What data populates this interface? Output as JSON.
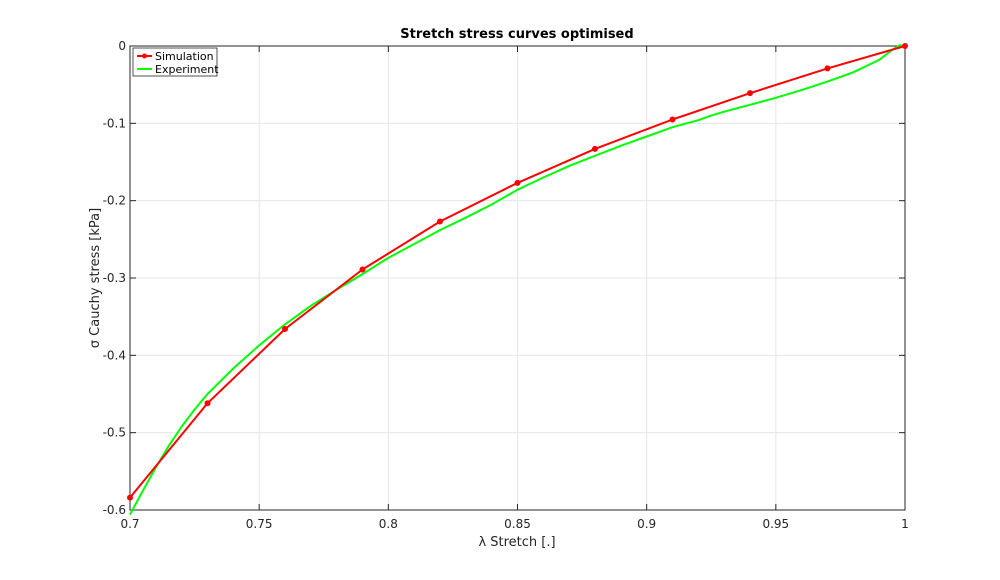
{
  "chart_data": {
    "type": "line",
    "title": "Stretch stress curves optimised",
    "xlabel": "λ Stretch [.]",
    "ylabel": "σ Cauchy stress [kPa]",
    "xlim": [
      0.7,
      1.0
    ],
    "ylim": [
      -0.6,
      0
    ],
    "xticks": [
      0.7,
      0.75,
      0.8,
      0.85,
      0.9,
      0.95,
      1
    ],
    "xtick_labels": [
      "0.7",
      "0.75",
      "0.8",
      "0.85",
      "0.9",
      "0.95",
      "1"
    ],
    "yticks": [
      0,
      -0.1,
      -0.2,
      -0.3,
      -0.4,
      -0.5,
      -0.6
    ],
    "ytick_labels": [
      "0",
      "-0.1",
      "-0.2",
      "-0.3",
      "-0.4",
      "-0.5",
      "-0.6"
    ],
    "grid": true,
    "legend_position": "top-left",
    "series": [
      {
        "name": "Simulation",
        "color": "#ff0000",
        "marker": "dot",
        "x": [
          0.7,
          0.73,
          0.76,
          0.79,
          0.82,
          0.85,
          0.88,
          0.91,
          0.94,
          0.97,
          1.0
        ],
        "y": [
          -0.584,
          -0.462,
          -0.366,
          -0.289,
          -0.227,
          -0.177,
          -0.133,
          -0.095,
          -0.061,
          -0.029,
          0.0
        ]
      },
      {
        "name": "Experiment",
        "color": "#00ff00",
        "marker": "none",
        "x": [
          0.7,
          0.705,
          0.71,
          0.715,
          0.72,
          0.725,
          0.73,
          0.74,
          0.75,
          0.76,
          0.77,
          0.78,
          0.79,
          0.8,
          0.81,
          0.82,
          0.83,
          0.84,
          0.85,
          0.86,
          0.87,
          0.88,
          0.89,
          0.9,
          0.91,
          0.92,
          0.925,
          0.93,
          0.94,
          0.95,
          0.96,
          0.97,
          0.98,
          0.99,
          0.995,
          0.998,
          1.0
        ],
        "y": [
          -0.606,
          -0.575,
          -0.545,
          -0.517,
          -0.492,
          -0.47,
          -0.45,
          -0.417,
          -0.387,
          -0.36,
          -0.336,
          -0.315,
          -0.295,
          -0.274,
          -0.256,
          -0.238,
          -0.222,
          -0.205,
          -0.186,
          -0.17,
          -0.155,
          -0.142,
          -0.129,
          -0.117,
          -0.105,
          -0.096,
          -0.09,
          -0.085,
          -0.076,
          -0.067,
          -0.057,
          -0.046,
          -0.034,
          -0.018,
          -0.005,
          0.001,
          0.0
        ]
      }
    ]
  }
}
